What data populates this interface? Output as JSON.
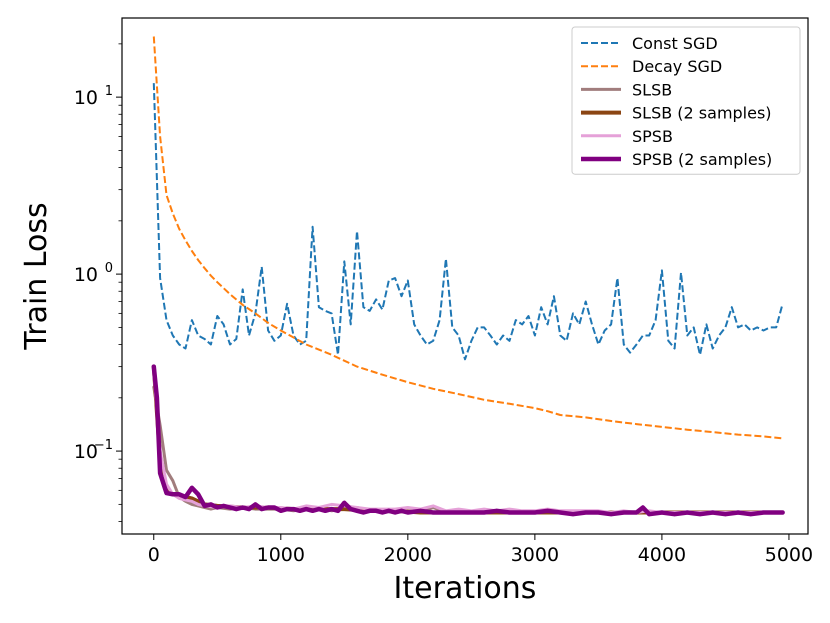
{
  "chart_data": {
    "type": "line",
    "title": "",
    "xlabel": "Iterations",
    "ylabel": "Train Loss",
    "xscale": "linear",
    "yscale": "log",
    "xlim": [
      -250,
      5150
    ],
    "ylim": [
      0.034,
      28
    ],
    "xticks": [
      {
        "value": 0,
        "label": "0"
      },
      {
        "value": 1000,
        "label": "1000"
      },
      {
        "value": 2000,
        "label": "2000"
      },
      {
        "value": 3000,
        "label": "3000"
      },
      {
        "value": 4000,
        "label": "4000"
      },
      {
        "value": 5000,
        "label": "5000"
      }
    ],
    "yticks": [
      {
        "value": 0.1,
        "base": "10",
        "exp": "−1"
      },
      {
        "value": 1,
        "base": "10",
        "exp": "0"
      },
      {
        "value": 10,
        "base": "10",
        "exp": "1"
      }
    ],
    "legend_position": "top-right",
    "series": [
      {
        "name": "Const SGD",
        "color": "#1f77b4",
        "style": "dashed",
        "width": 2,
        "x": [
          0,
          50,
          100,
          150,
          200,
          250,
          300,
          350,
          400,
          450,
          500,
          550,
          600,
          650,
          700,
          750,
          800,
          850,
          900,
          950,
          1000,
          1050,
          1100,
          1150,
          1200,
          1250,
          1300,
          1350,
          1400,
          1450,
          1500,
          1550,
          1600,
          1650,
          1700,
          1750,
          1800,
          1850,
          1900,
          1950,
          2000,
          2050,
          2100,
          2150,
          2200,
          2250,
          2300,
          2350,
          2400,
          2450,
          2500,
          2550,
          2600,
          2650,
          2700,
          2750,
          2800,
          2850,
          2900,
          2950,
          3000,
          3050,
          3100,
          3150,
          3200,
          3250,
          3300,
          3350,
          3400,
          3450,
          3500,
          3550,
          3600,
          3650,
          3700,
          3750,
          3800,
          3850,
          3900,
          3950,
          4000,
          4050,
          4100,
          4150,
          4200,
          4250,
          4300,
          4350,
          4400,
          4450,
          4500,
          4550,
          4600,
          4650,
          4700,
          4750,
          4800,
          4850,
          4900,
          4950
        ],
        "y": [
          12,
          0.95,
          0.55,
          0.45,
          0.4,
          0.38,
          0.55,
          0.45,
          0.43,
          0.4,
          0.58,
          0.52,
          0.4,
          0.43,
          0.82,
          0.45,
          0.6,
          1.1,
          0.48,
          0.42,
          0.45,
          0.68,
          0.45,
          0.4,
          0.42,
          1.85,
          0.65,
          0.62,
          0.6,
          0.35,
          1.18,
          0.52,
          1.75,
          0.65,
          0.62,
          0.72,
          0.63,
          0.92,
          0.95,
          0.75,
          0.92,
          0.52,
          0.45,
          0.4,
          0.42,
          0.55,
          1.22,
          0.5,
          0.45,
          0.33,
          0.42,
          0.5,
          0.5,
          0.45,
          0.4,
          0.45,
          0.42,
          0.55,
          0.52,
          0.58,
          0.45,
          0.65,
          0.52,
          0.75,
          0.45,
          0.42,
          0.6,
          0.52,
          0.7,
          0.52,
          0.4,
          0.48,
          0.52,
          0.95,
          0.4,
          0.36,
          0.4,
          0.45,
          0.45,
          0.55,
          1.05,
          0.42,
          0.38,
          1.02,
          0.45,
          0.5,
          0.35,
          0.52,
          0.38,
          0.45,
          0.5,
          0.65,
          0.5,
          0.52,
          0.48,
          0.5,
          0.48,
          0.5,
          0.5,
          0.68
        ]
      },
      {
        "name": "Decay SGD",
        "color": "#ff7f0e",
        "style": "dashed",
        "width": 2,
        "x": [
          0,
          50,
          100,
          150,
          200,
          250,
          300,
          350,
          400,
          450,
          500,
          600,
          700,
          800,
          900,
          1000,
          1200,
          1400,
          1600,
          1800,
          2000,
          2200,
          2400,
          2600,
          2800,
          3000,
          3100,
          3200,
          3400,
          3600,
          3800,
          4000,
          4200,
          4400,
          4600,
          4800,
          4950
        ],
        "y": [
          22,
          6.0,
          2.8,
          2.2,
          1.8,
          1.55,
          1.35,
          1.2,
          1.08,
          0.98,
          0.9,
          0.77,
          0.67,
          0.6,
          0.53,
          0.48,
          0.4,
          0.35,
          0.3,
          0.27,
          0.245,
          0.225,
          0.21,
          0.195,
          0.185,
          0.175,
          0.168,
          0.16,
          0.155,
          0.148,
          0.142,
          0.137,
          0.132,
          0.128,
          0.124,
          0.121,
          0.118
        ]
      },
      {
        "name": "SLSB",
        "color": "#a17d7d",
        "style": "solid",
        "width": 3,
        "x": [
          0,
          50,
          100,
          150,
          200,
          250,
          300,
          350,
          400,
          450,
          500,
          600,
          700,
          800,
          900,
          1000,
          1100,
          1200,
          1300,
          1400,
          1500,
          1600,
          1700,
          1800,
          1900,
          2000,
          2100,
          2200,
          2300,
          2400,
          2500,
          2600,
          2700,
          2800,
          2900,
          3000,
          3200,
          3400,
          3600,
          3800,
          4000,
          4200,
          4400,
          4600,
          4800,
          4950
        ],
        "y": [
          0.23,
          0.14,
          0.078,
          0.068,
          0.055,
          0.052,
          0.05,
          0.049,
          0.048,
          0.047,
          0.048,
          0.047,
          0.048,
          0.047,
          0.047,
          0.047,
          0.046,
          0.047,
          0.048,
          0.046,
          0.047,
          0.048,
          0.046,
          0.046,
          0.045,
          0.046,
          0.045,
          0.048,
          0.045,
          0.046,
          0.045,
          0.046,
          0.045,
          0.046,
          0.045,
          0.045,
          0.045,
          0.045,
          0.045,
          0.045,
          0.045,
          0.045,
          0.045,
          0.045,
          0.045,
          0.045
        ]
      },
      {
        "name": "SLSB (2 samples)",
        "color": "#8b4513",
        "style": "solid",
        "width": 4,
        "x": [
          0,
          50,
          100,
          150,
          200,
          250,
          300,
          400,
          500,
          700,
          900,
          1100,
          1300,
          1500,
          1700,
          1900,
          2100,
          2300,
          2500,
          2700,
          2900,
          3100,
          3300,
          3500,
          3700,
          3900,
          4100,
          4300,
          4500,
          4700,
          4950
        ],
        "y": [
          0.3,
          0.09,
          0.06,
          0.057,
          0.056,
          0.055,
          0.054,
          0.05,
          0.049,
          0.048,
          0.048,
          0.047,
          0.047,
          0.047,
          0.046,
          0.046,
          0.045,
          0.045,
          0.045,
          0.045,
          0.045,
          0.045,
          0.045,
          0.045,
          0.045,
          0.045,
          0.045,
          0.045,
          0.045,
          0.045,
          0.045
        ]
      },
      {
        "name": "SPSB",
        "color": "#e5a1d8",
        "style": "solid",
        "width": 3,
        "x": [
          0,
          50,
          100,
          150,
          200,
          250,
          300,
          350,
          400,
          500,
          600,
          700,
          800,
          900,
          1000,
          1100,
          1200,
          1300,
          1400,
          1500,
          1600,
          1700,
          1800,
          1900,
          2000,
          2100,
          2200,
          2300,
          2400,
          2500,
          2600,
          2700,
          2800,
          2900,
          3000,
          3100,
          3200,
          3300,
          3400,
          3500,
          3600,
          3700,
          3800,
          3900,
          4000,
          4200,
          4400,
          4600,
          4800,
          4950
        ],
        "y": [
          0.28,
          0.1,
          0.065,
          0.057,
          0.054,
          0.053,
          0.052,
          0.05,
          0.049,
          0.048,
          0.049,
          0.048,
          0.049,
          0.048,
          0.048,
          0.047,
          0.049,
          0.048,
          0.05,
          0.049,
          0.048,
          0.047,
          0.047,
          0.047,
          0.048,
          0.047,
          0.049,
          0.046,
          0.047,
          0.046,
          0.047,
          0.046,
          0.047,
          0.046,
          0.046,
          0.047,
          0.046,
          0.046,
          0.046,
          0.046,
          0.045,
          0.046,
          0.045,
          0.046,
          0.045,
          0.045,
          0.045,
          0.045,
          0.045,
          0.045
        ]
      },
      {
        "name": "SPSB (2 samples)",
        "color": "#800080",
        "style": "solid",
        "width": 4.5,
        "x": [
          0,
          25,
          50,
          100,
          150,
          200,
          250,
          300,
          350,
          400,
          450,
          500,
          550,
          600,
          650,
          700,
          750,
          800,
          850,
          900,
          950,
          1000,
          1050,
          1100,
          1150,
          1200,
          1250,
          1300,
          1350,
          1400,
          1450,
          1500,
          1550,
          1600,
          1650,
          1700,
          1750,
          1800,
          1850,
          1900,
          1950,
          2000,
          2100,
          2200,
          2300,
          2400,
          2500,
          2600,
          2700,
          2800,
          2900,
          3000,
          3100,
          3200,
          3300,
          3400,
          3500,
          3600,
          3700,
          3800,
          3850,
          3900,
          4000,
          4100,
          4200,
          4300,
          4400,
          4500,
          4600,
          4700,
          4800,
          4950
        ],
        "y": [
          0.3,
          0.2,
          0.075,
          0.058,
          0.057,
          0.057,
          0.055,
          0.062,
          0.057,
          0.049,
          0.05,
          0.048,
          0.049,
          0.048,
          0.047,
          0.048,
          0.047,
          0.05,
          0.047,
          0.048,
          0.048,
          0.046,
          0.047,
          0.047,
          0.046,
          0.047,
          0.046,
          0.047,
          0.046,
          0.047,
          0.046,
          0.051,
          0.047,
          0.046,
          0.045,
          0.046,
          0.046,
          0.045,
          0.046,
          0.045,
          0.046,
          0.045,
          0.046,
          0.045,
          0.045,
          0.045,
          0.045,
          0.045,
          0.046,
          0.045,
          0.045,
          0.045,
          0.046,
          0.045,
          0.044,
          0.045,
          0.045,
          0.044,
          0.045,
          0.045,
          0.048,
          0.044,
          0.045,
          0.044,
          0.045,
          0.044,
          0.045,
          0.044,
          0.045,
          0.044,
          0.045,
          0.045
        ]
      }
    ]
  }
}
